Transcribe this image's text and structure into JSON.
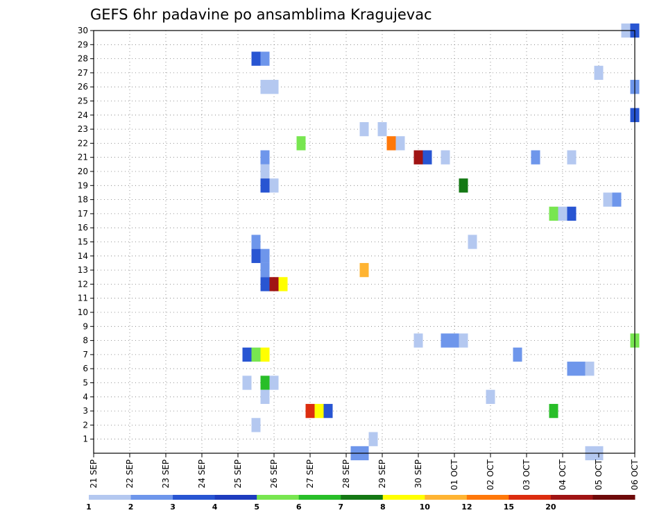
{
  "chart_data": {
    "type": "heatmap",
    "title": "GEFS 6hr padavine po ansamblima Kragujevac",
    "xlabel": "",
    "ylabel": "",
    "x_tick_labels": [
      "21 SEP",
      "22 SEP",
      "23 SEP",
      "24 SEP",
      "25 SEP",
      "26 SEP",
      "27 SEP",
      "28 SEP",
      "29 SEP",
      "30 SEP",
      "01 OCT",
      "02 OCT",
      "03 OCT",
      "04 OCT",
      "05 OCT",
      "06 OCT"
    ],
    "y_tick_labels": [
      "1",
      "2",
      "3",
      "4",
      "5",
      "6",
      "7",
      "8",
      "9",
      "10",
      "11",
      "12",
      "13",
      "14",
      "15",
      "16",
      "17",
      "18",
      "19",
      "20",
      "21",
      "22",
      "23",
      "24",
      "25",
      "26",
      "27",
      "28",
      "29",
      "30"
    ],
    "xlim_days": [
      0,
      15
    ],
    "ylim_members": [
      0,
      30
    ],
    "grid": true,
    "legend_placement": "bottom",
    "legend_levels": [
      "1",
      "2",
      "3",
      "4",
      "5",
      "6",
      "7",
      "8",
      "10",
      "12",
      "15",
      "20"
    ],
    "legend_colors": [
      "#b4c8f0",
      "#6e96eb",
      "#2855d2",
      "#1e3cbe",
      "#78e650",
      "#28be28",
      "#147814",
      "#ffff00",
      "#ffb432",
      "#ff780a",
      "#dc2d0f",
      "#a01414",
      "#6e0a0a"
    ],
    "cells": [
      {
        "member": 30,
        "day": 14.75,
        "value": 1
      },
      {
        "member": 30,
        "day": 15.0,
        "value": 3
      },
      {
        "member": 28,
        "day": 4.5,
        "value": 3
      },
      {
        "member": 28,
        "day": 4.75,
        "value": 2
      },
      {
        "member": 27,
        "day": 14.0,
        "value": 1
      },
      {
        "member": 26,
        "day": 4.75,
        "value": 1
      },
      {
        "member": 26,
        "day": 5.0,
        "value": 1
      },
      {
        "member": 26,
        "day": 15.0,
        "value": 2
      },
      {
        "member": 24,
        "day": 15.0,
        "value": 3
      },
      {
        "member": 23,
        "day": 7.5,
        "value": 1
      },
      {
        "member": 23,
        "day": 8.0,
        "value": 1
      },
      {
        "member": 22,
        "day": 5.75,
        "value": 5
      },
      {
        "member": 22,
        "day": 8.25,
        "value": 12
      },
      {
        "member": 22,
        "day": 8.5,
        "value": 1
      },
      {
        "member": 21,
        "day": 4.75,
        "value": 2
      },
      {
        "member": 21,
        "day": 9.0,
        "value": 20
      },
      {
        "member": 21,
        "day": 9.25,
        "value": 3
      },
      {
        "member": 21,
        "day": 9.75,
        "value": 1
      },
      {
        "member": 21,
        "day": 12.25,
        "value": 2
      },
      {
        "member": 21,
        "day": 13.25,
        "value": 1
      },
      {
        "member": 20,
        "day": 4.75,
        "value": 1
      },
      {
        "member": 19,
        "day": 4.75,
        "value": 3
      },
      {
        "member": 19,
        "day": 5.0,
        "value": 1
      },
      {
        "member": 19,
        "day": 10.25,
        "value": 7
      },
      {
        "member": 18,
        "day": 14.25,
        "value": 1
      },
      {
        "member": 18,
        "day": 14.5,
        "value": 2
      },
      {
        "member": 17,
        "day": 12.75,
        "value": 5
      },
      {
        "member": 17,
        "day": 13.0,
        "value": 1
      },
      {
        "member": 17,
        "day": 13.25,
        "value": 3
      },
      {
        "member": 15,
        "day": 4.5,
        "value": 2
      },
      {
        "member": 15,
        "day": 10.5,
        "value": 1
      },
      {
        "member": 14,
        "day": 4.5,
        "value": 3
      },
      {
        "member": 14,
        "day": 4.75,
        "value": 2
      },
      {
        "member": 13,
        "day": 4.75,
        "value": 2
      },
      {
        "member": 13,
        "day": 7.5,
        "value": 10
      },
      {
        "member": 12,
        "day": 4.75,
        "value": 3
      },
      {
        "member": 12,
        "day": 5.0,
        "value": 20
      },
      {
        "member": 12,
        "day": 5.25,
        "value": 8
      },
      {
        "member": 8,
        "day": 9.0,
        "value": 1
      },
      {
        "member": 8,
        "day": 9.75,
        "value": 2
      },
      {
        "member": 8,
        "day": 10.0,
        "value": 2
      },
      {
        "member": 8,
        "day": 10.25,
        "value": 1
      },
      {
        "member": 8,
        "day": 15.0,
        "value": 5
      },
      {
        "member": 7,
        "day": 4.25,
        "value": 3
      },
      {
        "member": 7,
        "day": 4.5,
        "value": 5
      },
      {
        "member": 7,
        "day": 4.75,
        "value": 8
      },
      {
        "member": 7,
        "day": 11.75,
        "value": 2
      },
      {
        "member": 6,
        "day": 13.25,
        "value": 2
      },
      {
        "member": 6,
        "day": 13.5,
        "value": 2
      },
      {
        "member": 6,
        "day": 13.75,
        "value": 1
      },
      {
        "member": 5,
        "day": 4.25,
        "value": 1
      },
      {
        "member": 5,
        "day": 4.75,
        "value": 6
      },
      {
        "member": 5,
        "day": 5.0,
        "value": 1
      },
      {
        "member": 4,
        "day": 4.75,
        "value": 1
      },
      {
        "member": 4,
        "day": 11.0,
        "value": 1
      },
      {
        "member": 3,
        "day": 6.0,
        "value": 15
      },
      {
        "member": 3,
        "day": 6.25,
        "value": 8
      },
      {
        "member": 3,
        "day": 6.5,
        "value": 3
      },
      {
        "member": 3,
        "day": 12.75,
        "value": 6
      },
      {
        "member": 2,
        "day": 4.5,
        "value": 1
      },
      {
        "member": 1,
        "day": 7.75,
        "value": 1
      },
      {
        "member": 0,
        "day": 7.25,
        "value": 2
      },
      {
        "member": 0,
        "day": 7.5,
        "value": 2
      },
      {
        "member": 0,
        "day": 13.75,
        "value": 1
      },
      {
        "member": 0,
        "day": 14.0,
        "value": 1
      }
    ]
  }
}
